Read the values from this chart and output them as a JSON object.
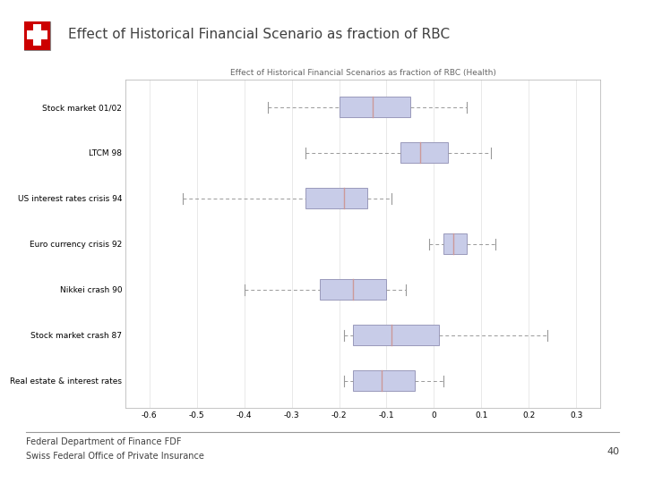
{
  "title_main": "Effect of Historical Financial Scenario as fraction of RBC",
  "chart_title": "Effect of Historical Financial Scenarios as fraction of RBC (Health)",
  "footer_line1": "Federal Department of Finance FDF",
  "footer_line2": "Swiss Federal Office of Private Insurance",
  "page_number": "40",
  "categories": [
    "Stock market 01/02",
    "LTCM 98",
    "US interest rates crisis 94",
    "Euro currency crisis 92",
    "Nikkei crash 90",
    "Stock market crash 87",
    "Real estate & interest rates"
  ],
  "box_data": [
    {
      "whisker_low": -0.35,
      "q1": -0.2,
      "median": -0.13,
      "q3": -0.05,
      "whisker_high": 0.07
    },
    {
      "whisker_low": -0.27,
      "q1": -0.07,
      "median": -0.03,
      "q3": 0.03,
      "whisker_high": 0.12
    },
    {
      "whisker_low": -0.53,
      "q1": -0.27,
      "median": -0.19,
      "q3": -0.14,
      "whisker_high": -0.09
    },
    {
      "whisker_low": -0.01,
      "q1": 0.02,
      "median": 0.04,
      "q3": 0.07,
      "whisker_high": 0.13
    },
    {
      "whisker_low": -0.4,
      "q1": -0.24,
      "median": -0.17,
      "q3": -0.1,
      "whisker_high": -0.06
    },
    {
      "whisker_low": -0.19,
      "q1": -0.17,
      "median": -0.09,
      "q3": 0.01,
      "whisker_high": 0.24
    },
    {
      "whisker_low": -0.19,
      "q1": -0.17,
      "median": -0.11,
      "q3": -0.04,
      "whisker_high": 0.02
    }
  ],
  "xlim": [
    -0.65,
    0.35
  ],
  "xticks": [
    -0.6,
    -0.5,
    -0.4,
    -0.3,
    -0.2,
    -0.1,
    0.0,
    0.1,
    0.2,
    0.3
  ],
  "box_color": "#c8cce8",
  "box_edge_color": "#9999bb",
  "median_color": "#cc9999",
  "whisker_color": "#999999",
  "cap_color": "#999999",
  "dashed_line_color": "#999999",
  "bg_color": "#ffffff",
  "main_title_color": "#404040",
  "swiss_logo_color": "#cc0000",
  "figsize": [
    7.2,
    5.4
  ],
  "dpi": 100
}
